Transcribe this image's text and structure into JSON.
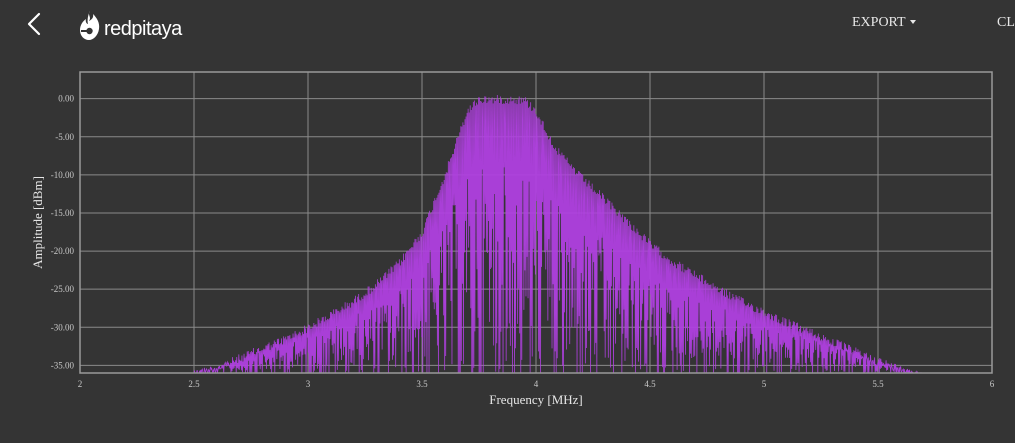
{
  "header": {
    "back_icon": "chevron-left-icon",
    "logo_icon": "redpitaya-flame-icon",
    "logo_text": "redpitaya",
    "export_label": "EXPORT",
    "clear_label": "CL"
  },
  "colors": {
    "background": "#343434",
    "plot_border": "#9a9a9a",
    "grid": "#8a8a8a",
    "signal": "#b040e0"
  },
  "chart_data": {
    "type": "line",
    "title": "",
    "xlabel": "Frequency   [MHz]",
    "ylabel": "Amplitude [dBm]",
    "xlim": [
      2,
      6
    ],
    "ylim": [
      -36,
      3.5
    ],
    "x_ticks": [
      2,
      2.5,
      3,
      3.5,
      4,
      4.5,
      5,
      5.5,
      6
    ],
    "x_tick_labels": [
      "2",
      "2.5",
      "3",
      "3.5",
      "4",
      "4.5",
      "5",
      "5.5",
      "6"
    ],
    "y_ticks": [
      0,
      -5,
      -10,
      -15,
      -20,
      -25,
      -30,
      -35
    ],
    "y_tick_labels": [
      "0.00",
      "-5.00",
      "-10.00",
      "-15.00",
      "-20.00",
      "-25.00",
      "-30.00",
      "-35.00"
    ],
    "grid": true,
    "legend": "none",
    "series": [
      {
        "color": "#b040e0",
        "envelope": [
          [
            2.5,
            -35.5
          ],
          [
            2.6,
            -34.8
          ],
          [
            2.7,
            -33.5
          ],
          [
            2.8,
            -32.2
          ],
          [
            2.9,
            -31.0
          ],
          [
            3.0,
            -29.5
          ],
          [
            3.1,
            -27.8
          ],
          [
            3.2,
            -26.0
          ],
          [
            3.3,
            -23.8
          ],
          [
            3.4,
            -21.0
          ],
          [
            3.5,
            -17.0
          ],
          [
            3.6,
            -9.5
          ],
          [
            3.7,
            -1.0
          ],
          [
            3.75,
            0.5
          ],
          [
            3.8,
            0.5
          ],
          [
            3.85,
            0.5
          ],
          [
            3.9,
            0.5
          ],
          [
            3.95,
            0.4
          ],
          [
            4.0,
            -1.0
          ],
          [
            4.05,
            -4.0
          ],
          [
            4.1,
            -6.5
          ],
          [
            4.2,
            -9.8
          ],
          [
            4.3,
            -12.6
          ],
          [
            4.4,
            -15.5
          ],
          [
            4.5,
            -18.5
          ],
          [
            4.6,
            -20.8
          ],
          [
            4.7,
            -22.6
          ],
          [
            4.8,
            -24.4
          ],
          [
            4.9,
            -26.0
          ],
          [
            5.0,
            -27.4
          ],
          [
            5.1,
            -28.8
          ],
          [
            5.2,
            -30.0
          ],
          [
            5.3,
            -31.3
          ],
          [
            5.4,
            -32.6
          ],
          [
            5.5,
            -33.8
          ],
          [
            5.6,
            -35.0
          ],
          [
            5.7,
            -36.0
          ]
        ],
        "floor": -36
      }
    ]
  }
}
